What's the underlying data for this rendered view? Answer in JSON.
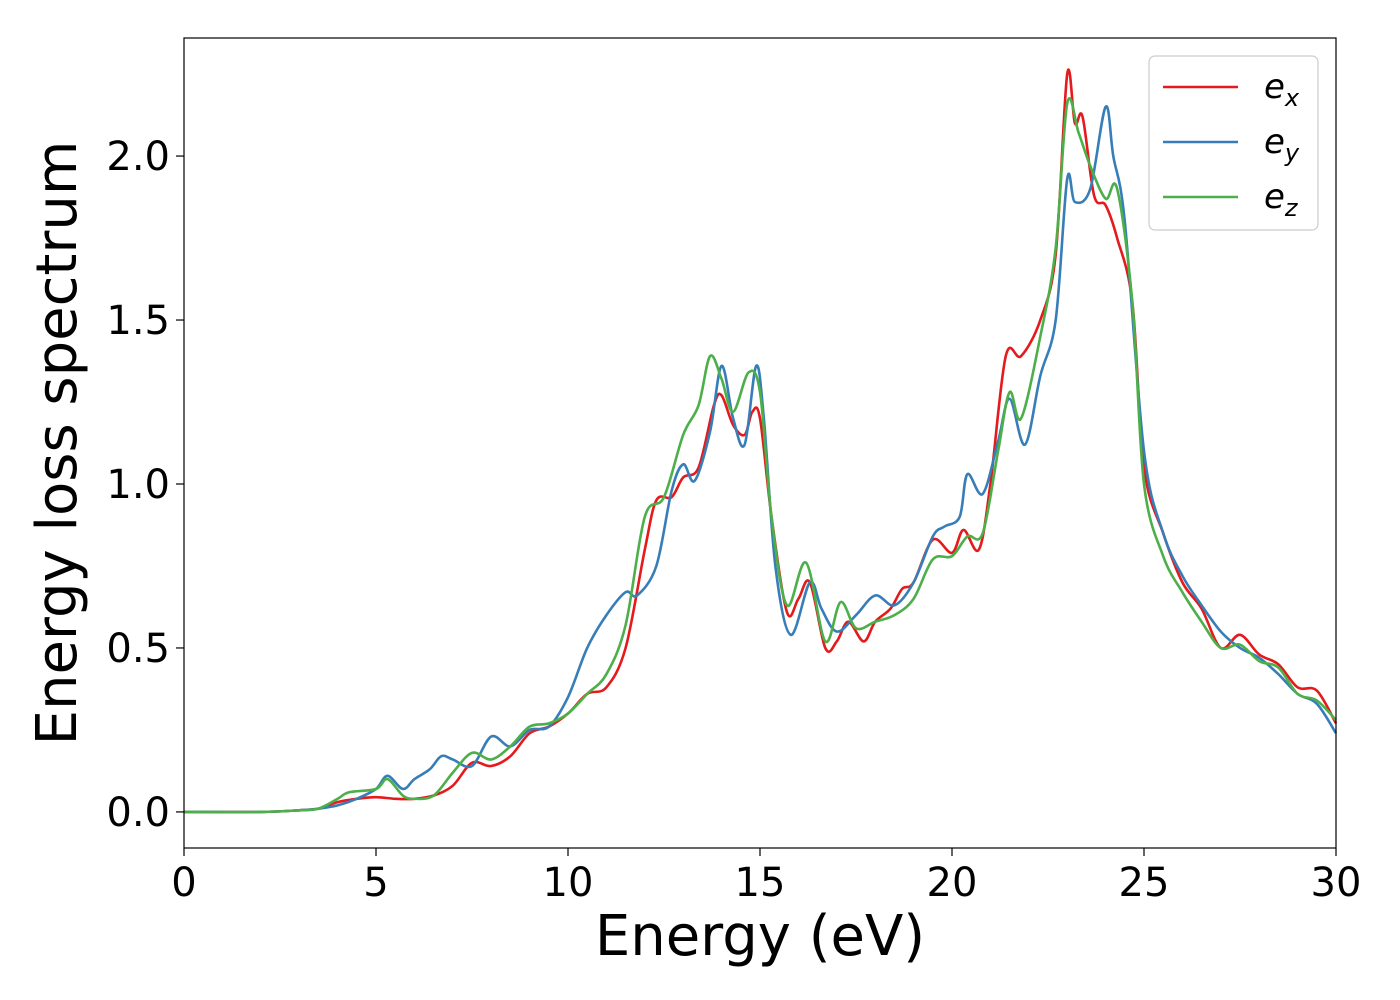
{
  "chart_data": {
    "type": "line",
    "xlabel": "Energy (eV)",
    "ylabel": "Energy loss spectrum",
    "xlim": [
      0,
      30
    ],
    "ylim": [
      -0.11,
      2.36
    ],
    "xticks": [
      0,
      5,
      10,
      15,
      20,
      25,
      30
    ],
    "yticks": [
      0.0,
      0.5,
      1.0,
      1.5,
      2.0
    ],
    "xtick_labels": [
      "0",
      "5",
      "10",
      "15",
      "20",
      "25",
      "30"
    ],
    "ytick_labels": [
      "0.0",
      "0.5",
      "1.0",
      "1.5",
      "2.0"
    ],
    "grid": false,
    "legend_position": "top-right",
    "series": [
      {
        "name_main": "e",
        "name_sub": "x",
        "color": "#e41a1c",
        "points": [
          [
            0,
            0
          ],
          [
            2,
            0
          ],
          [
            3,
            0.005
          ],
          [
            3.5,
            0.01
          ],
          [
            4,
            0.03
          ],
          [
            4.5,
            0.04
          ],
          [
            5,
            0.045
          ],
          [
            5.5,
            0.04
          ],
          [
            6,
            0.04
          ],
          [
            6.5,
            0.05
          ],
          [
            7,
            0.08
          ],
          [
            7.5,
            0.15
          ],
          [
            8,
            0.14
          ],
          [
            8.5,
            0.17
          ],
          [
            9,
            0.24
          ],
          [
            9.5,
            0.26
          ],
          [
            10,
            0.3
          ],
          [
            10.5,
            0.36
          ],
          [
            11,
            0.38
          ],
          [
            11.5,
            0.5
          ],
          [
            12,
            0.8
          ],
          [
            12.3,
            0.95
          ],
          [
            12.7,
            0.96
          ],
          [
            13,
            1.02
          ],
          [
            13.4,
            1.05
          ],
          [
            13.8,
            1.24
          ],
          [
            14,
            1.27
          ],
          [
            14.3,
            1.18
          ],
          [
            14.6,
            1.15
          ],
          [
            14.8,
            1.22
          ],
          [
            15,
            1.2
          ],
          [
            15.3,
            0.9
          ],
          [
            15.7,
            0.61
          ],
          [
            16,
            0.65
          ],
          [
            16.3,
            0.7
          ],
          [
            16.7,
            0.5
          ],
          [
            17,
            0.52
          ],
          [
            17.3,
            0.58
          ],
          [
            17.7,
            0.52
          ],
          [
            18,
            0.58
          ],
          [
            18.4,
            0.62
          ],
          [
            18.7,
            0.68
          ],
          [
            19,
            0.7
          ],
          [
            19.5,
            0.83
          ],
          [
            20,
            0.79
          ],
          [
            20.3,
            0.86
          ],
          [
            20.7,
            0.8
          ],
          [
            21,
            1.0
          ],
          [
            21.4,
            1.39
          ],
          [
            21.8,
            1.39
          ],
          [
            22.3,
            1.5
          ],
          [
            22.7,
            1.7
          ],
          [
            23,
            2.25
          ],
          [
            23.2,
            2.1
          ],
          [
            23.4,
            2.12
          ],
          [
            23.7,
            1.88
          ],
          [
            24,
            1.85
          ],
          [
            24.3,
            1.75
          ],
          [
            24.7,
            1.55
          ],
          [
            25,
            1.05
          ],
          [
            25.5,
            0.85
          ],
          [
            26,
            0.7
          ],
          [
            26.5,
            0.62
          ],
          [
            27,
            0.5
          ],
          [
            27.5,
            0.54
          ],
          [
            28,
            0.48
          ],
          [
            28.5,
            0.45
          ],
          [
            29,
            0.38
          ],
          [
            29.5,
            0.37
          ],
          [
            30,
            0.27
          ]
        ]
      },
      {
        "name_main": "e",
        "name_sub": "y",
        "color": "#377eb8",
        "points": [
          [
            0,
            0
          ],
          [
            2,
            0
          ],
          [
            3,
            0.005
          ],
          [
            3.5,
            0.01
          ],
          [
            4,
            0.02
          ],
          [
            4.5,
            0.04
          ],
          [
            5,
            0.07
          ],
          [
            5.3,
            0.11
          ],
          [
            5.7,
            0.07
          ],
          [
            6,
            0.1
          ],
          [
            6.4,
            0.13
          ],
          [
            6.7,
            0.17
          ],
          [
            7,
            0.16
          ],
          [
            7.5,
            0.14
          ],
          [
            8,
            0.23
          ],
          [
            8.5,
            0.2
          ],
          [
            9,
            0.25
          ],
          [
            9.5,
            0.26
          ],
          [
            10,
            0.35
          ],
          [
            10.5,
            0.5
          ],
          [
            11,
            0.6
          ],
          [
            11.5,
            0.67
          ],
          [
            11.8,
            0.66
          ],
          [
            12.3,
            0.75
          ],
          [
            12.7,
            0.98
          ],
          [
            13,
            1.06
          ],
          [
            13.3,
            1.01
          ],
          [
            13.7,
            1.16
          ],
          [
            14,
            1.36
          ],
          [
            14.3,
            1.2
          ],
          [
            14.6,
            1.12
          ],
          [
            14.9,
            1.36
          ],
          [
            15.1,
            1.2
          ],
          [
            15.4,
            0.75
          ],
          [
            15.8,
            0.54
          ],
          [
            16.3,
            0.7
          ],
          [
            16.6,
            0.62
          ],
          [
            17,
            0.55
          ],
          [
            17.5,
            0.6
          ],
          [
            18,
            0.66
          ],
          [
            18.5,
            0.63
          ],
          [
            19,
            0.7
          ],
          [
            19.5,
            0.84
          ],
          [
            19.8,
            0.87
          ],
          [
            20.2,
            0.9
          ],
          [
            20.4,
            1.03
          ],
          [
            20.8,
            0.97
          ],
          [
            21.2,
            1.13
          ],
          [
            21.5,
            1.26
          ],
          [
            21.9,
            1.12
          ],
          [
            22.3,
            1.33
          ],
          [
            22.7,
            1.5
          ],
          [
            23,
            1.93
          ],
          [
            23.2,
            1.86
          ],
          [
            23.6,
            1.9
          ],
          [
            24,
            2.15
          ],
          [
            24.2,
            2.0
          ],
          [
            24.5,
            1.8
          ],
          [
            25,
            1.1
          ],
          [
            25.5,
            0.85
          ],
          [
            26,
            0.72
          ],
          [
            26.5,
            0.63
          ],
          [
            27,
            0.55
          ],
          [
            27.5,
            0.5
          ],
          [
            28,
            0.47
          ],
          [
            28.5,
            0.42
          ],
          [
            29,
            0.36
          ],
          [
            29.5,
            0.33
          ],
          [
            30,
            0.24
          ]
        ]
      },
      {
        "name_main": "e",
        "name_sub": "z",
        "color": "#4daf4a",
        "points": [
          [
            0,
            0
          ],
          [
            2,
            0
          ],
          [
            3,
            0.005
          ],
          [
            3.5,
            0.01
          ],
          [
            4,
            0.04
          ],
          [
            4.3,
            0.06
          ],
          [
            5,
            0.07
          ],
          [
            5.3,
            0.1
          ],
          [
            5.7,
            0.05
          ],
          [
            6,
            0.04
          ],
          [
            6.5,
            0.05
          ],
          [
            7,
            0.12
          ],
          [
            7.5,
            0.18
          ],
          [
            8,
            0.16
          ],
          [
            8.5,
            0.2
          ],
          [
            9,
            0.26
          ],
          [
            9.5,
            0.27
          ],
          [
            10,
            0.3
          ],
          [
            10.5,
            0.36
          ],
          [
            11,
            0.42
          ],
          [
            11.5,
            0.57
          ],
          [
            12,
            0.9
          ],
          [
            12.5,
            0.96
          ],
          [
            13,
            1.15
          ],
          [
            13.4,
            1.24
          ],
          [
            13.7,
            1.39
          ],
          [
            14,
            1.32
          ],
          [
            14.3,
            1.22
          ],
          [
            14.7,
            1.34
          ],
          [
            15,
            1.28
          ],
          [
            15.3,
            0.9
          ],
          [
            15.7,
            0.63
          ],
          [
            16.2,
            0.76
          ],
          [
            16.7,
            0.52
          ],
          [
            17.1,
            0.64
          ],
          [
            17.5,
            0.56
          ],
          [
            18,
            0.58
          ],
          [
            18.5,
            0.6
          ],
          [
            19,
            0.65
          ],
          [
            19.5,
            0.77
          ],
          [
            20,
            0.78
          ],
          [
            20.4,
            0.84
          ],
          [
            20.8,
            0.85
          ],
          [
            21.2,
            1.1
          ],
          [
            21.5,
            1.28
          ],
          [
            21.8,
            1.2
          ],
          [
            22.3,
            1.45
          ],
          [
            22.7,
            1.72
          ],
          [
            23,
            2.16
          ],
          [
            23.3,
            2.07
          ],
          [
            23.6,
            1.97
          ],
          [
            24,
            1.87
          ],
          [
            24.3,
            1.9
          ],
          [
            24.7,
            1.55
          ],
          [
            25,
            1.0
          ],
          [
            25.5,
            0.78
          ],
          [
            26,
            0.67
          ],
          [
            26.5,
            0.58
          ],
          [
            27,
            0.5
          ],
          [
            27.5,
            0.51
          ],
          [
            28,
            0.46
          ],
          [
            28.5,
            0.44
          ],
          [
            29,
            0.36
          ],
          [
            29.5,
            0.34
          ],
          [
            30,
            0.28
          ]
        ]
      }
    ]
  }
}
